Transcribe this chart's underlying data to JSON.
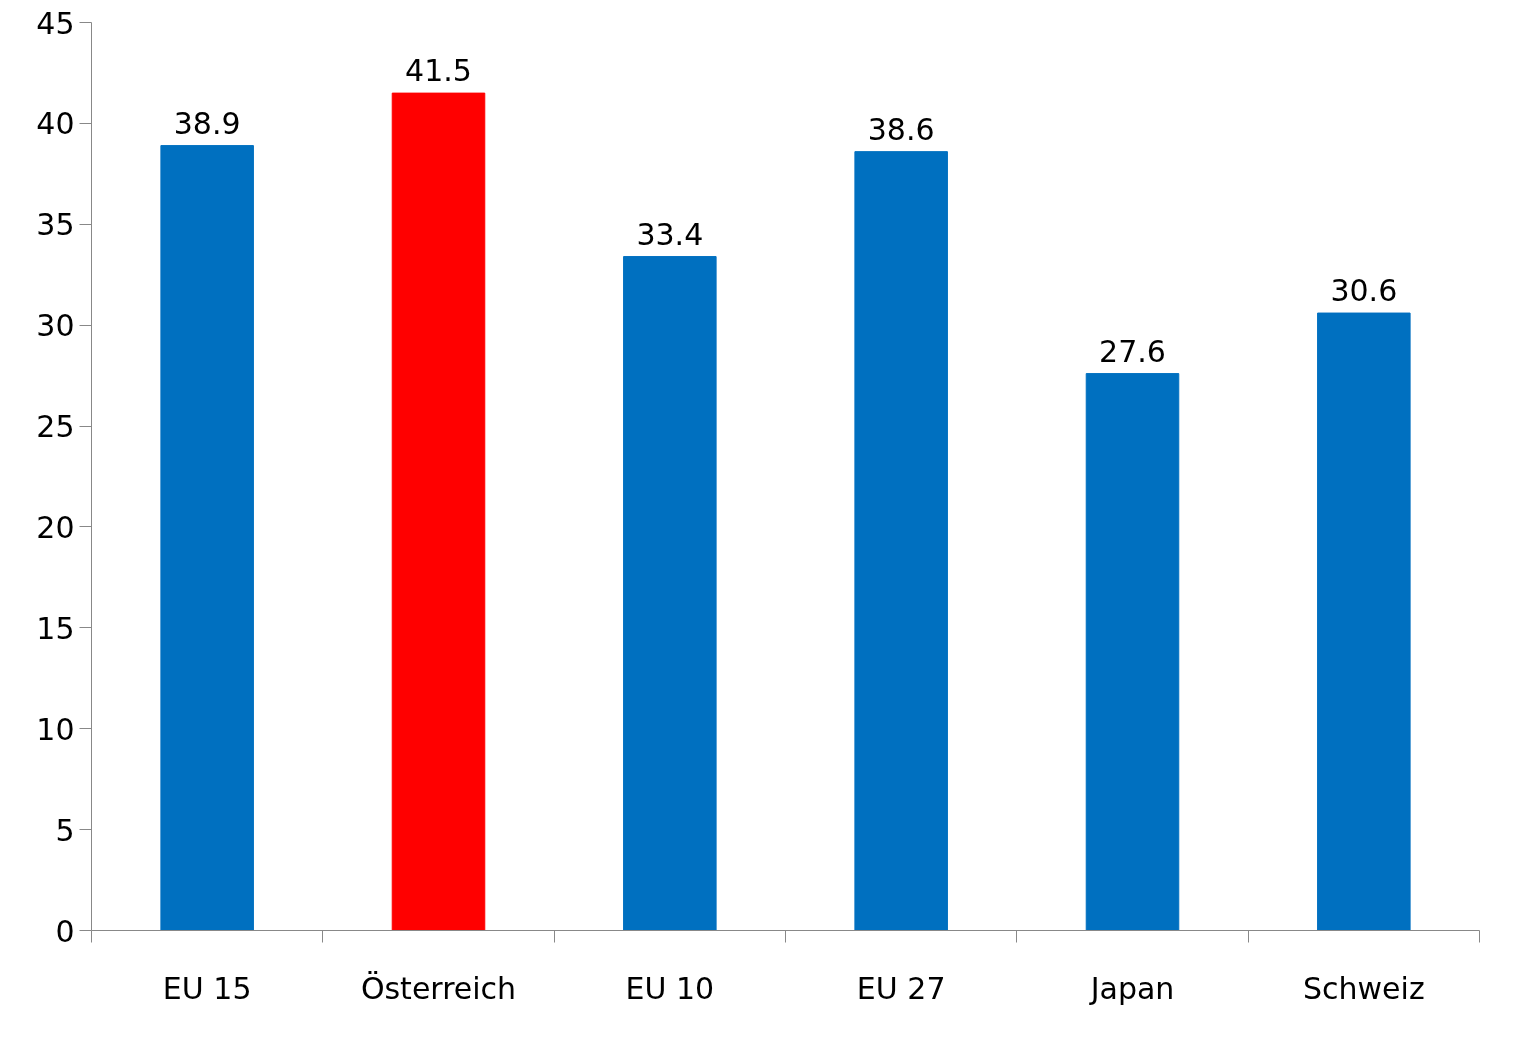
{
  "chart_data": {
    "type": "bar",
    "categories": [
      "EU 15",
      "Österreich",
      "EU 10",
      "EU 27",
      "Japan",
      "Schweiz"
    ],
    "values": [
      38.9,
      41.5,
      33.4,
      38.6,
      27.6,
      30.6
    ],
    "colors": [
      "#0070c0",
      "#ff0000",
      "#0070c0",
      "#0070c0",
      "#0070c0",
      "#0070c0"
    ],
    "ylim": [
      0,
      45
    ],
    "yticks": [
      0,
      5,
      10,
      15,
      20,
      25,
      30,
      35,
      40,
      45
    ],
    "data_labels": true,
    "grid": false
  }
}
